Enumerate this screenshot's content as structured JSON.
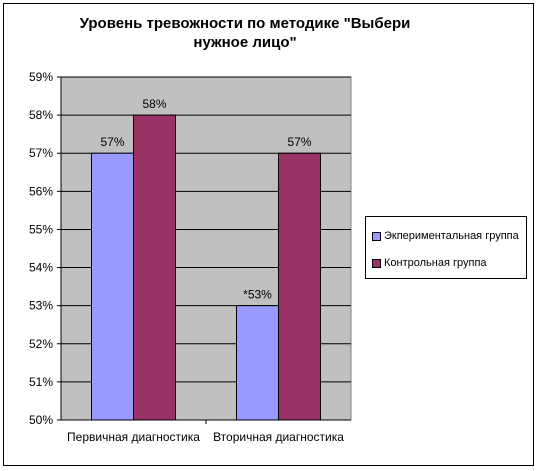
{
  "chart_data": {
    "type": "bar",
    "title": "Уровень тревожности по методике \"Выбери нужное лицо\"",
    "categories": [
      "Первичная диагностика",
      "Вторичная диагностика"
    ],
    "series": [
      {
        "name": "Экпериментальная группа",
        "values": [
          57,
          53
        ],
        "labels": [
          "57%",
          "*53%"
        ],
        "color": "#9999ff"
      },
      {
        "name": "Контрольная группа",
        "values": [
          58,
          57
        ],
        "labels": [
          "58%",
          "57%"
        ],
        "color": "#993366"
      }
    ],
    "ylim": [
      50,
      59
    ],
    "yticks": [
      "50%",
      "51%",
      "52%",
      "53%",
      "54%",
      "55%",
      "56%",
      "57%",
      "58%",
      "59%"
    ],
    "grid": true,
    "legend": "right",
    "plot_background": "#c0c0c0"
  }
}
